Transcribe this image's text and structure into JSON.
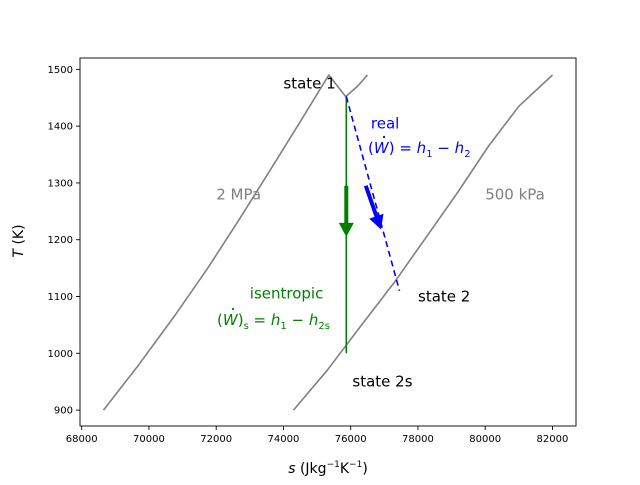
{
  "chart_data": {
    "type": "line",
    "title": "",
    "xlabel": "s (Jkg⁻¹K⁻¹)",
    "xlabel_parts": {
      "var": "s",
      "unit_open": "(Jkg",
      "exp1": "−1",
      "mid": "K",
      "exp2": "−1",
      "unit_close": ")"
    },
    "ylabel": "T (K)",
    "ylabel_parts": {
      "var": "T",
      "unit": "(K)"
    },
    "xlim": [
      67950,
      82700
    ],
    "ylim": [
      872,
      1520
    ],
    "xticks": [
      68000,
      70000,
      72000,
      74000,
      76000,
      78000,
      80000,
      82000
    ],
    "xtick_labels": [
      "68000",
      "70000",
      "72000",
      "74000",
      "76000",
      "78000",
      "80000",
      "82000"
    ],
    "yticks": [
      900,
      1000,
      1100,
      1200,
      1300,
      1400,
      1500
    ],
    "ytick_labels": [
      "900",
      "1000",
      "1100",
      "1200",
      "1300",
      "1400",
      "1500"
    ],
    "grid": false,
    "series": [
      {
        "name": "2 MPa",
        "color": "#808080",
        "style": "solid",
        "x": [
          68650,
          69700,
          70750,
          71750,
          72700,
          73600,
          74500,
          75350,
          75850,
          76200,
          76500
        ],
        "y": [
          900,
          980,
          1065,
          1150,
          1237,
          1322,
          1408,
          1490,
          1452,
          1470,
          1490
        ]
      },
      {
        "name": "500 kPa",
        "color": "#808080",
        "style": "solid",
        "x": [
          74300,
          75300,
          76300,
          77300,
          78250,
          79200,
          80100,
          81000,
          82000
        ],
        "y": [
          900,
          970,
          1048,
          1125,
          1205,
          1285,
          1365,
          1435,
          1490
        ]
      },
      {
        "name": "isentropic",
        "color": "#008000",
        "style": "solid",
        "x": [
          75870,
          75870
        ],
        "y": [
          1452,
          1000
        ]
      },
      {
        "name": "real",
        "color": "#0000ff",
        "style": "dashed",
        "x": [
          75870,
          77450
        ],
        "y": [
          1452,
          1110
        ]
      }
    ],
    "arrows": [
      {
        "name": "isentropic-arrow",
        "color": "#008000",
        "x": 75870,
        "y_start": 1295,
        "y_end": 1205
      },
      {
        "name": "real-arrow",
        "color": "#0000ff",
        "x_start": 76450,
        "y_start": 1295,
        "x_end": 76900,
        "y_end": 1218
      }
    ],
    "annotations": [
      {
        "name": "state-1-label",
        "text": "state 1",
        "x": 74000,
        "y": 1475,
        "color": "#000000",
        "anchor": "start"
      },
      {
        "name": "state-2-label",
        "text": "state 2",
        "x": 78000,
        "y": 1100,
        "color": "#000000",
        "anchor": "start"
      },
      {
        "name": "state-2s-label",
        "text": "state 2s",
        "x": 76050,
        "y": 950,
        "color": "#000000",
        "anchor": "start"
      },
      {
        "name": "pressure-2mpa-label",
        "text": "2 MPa",
        "x": 72000,
        "y": 1280,
        "color": "#808080",
        "anchor": "start"
      },
      {
        "name": "pressure-500kpa-label",
        "text": "500 kPa",
        "x": 80000,
        "y": 1280,
        "color": "#808080",
        "anchor": "start"
      },
      {
        "name": "real-label",
        "text": "real",
        "x": 76600,
        "y": 1405,
        "color": "#0000ff",
        "anchor": "start"
      },
      {
        "name": "isentropic-label",
        "text": "isentropic",
        "x": 73000,
        "y": 1105,
        "color": "#008000",
        "anchor": "start"
      }
    ],
    "equations": {
      "real": {
        "open": "(",
        "W": "W",
        "close": ")",
        "eq": " = ",
        "h1": "h",
        "sub1": "1",
        "minus": " − ",
        "h2": "h",
        "sub2": "2",
        "color": "#0000ff"
      },
      "isentropic": {
        "open": "(",
        "W": "W",
        "close": ")",
        "sub_s": "s",
        "eq": " = ",
        "h1": "h",
        "sub1": "1",
        "minus": " − ",
        "h2": "h",
        "sub2": "2s",
        "color": "#008000"
      }
    }
  }
}
